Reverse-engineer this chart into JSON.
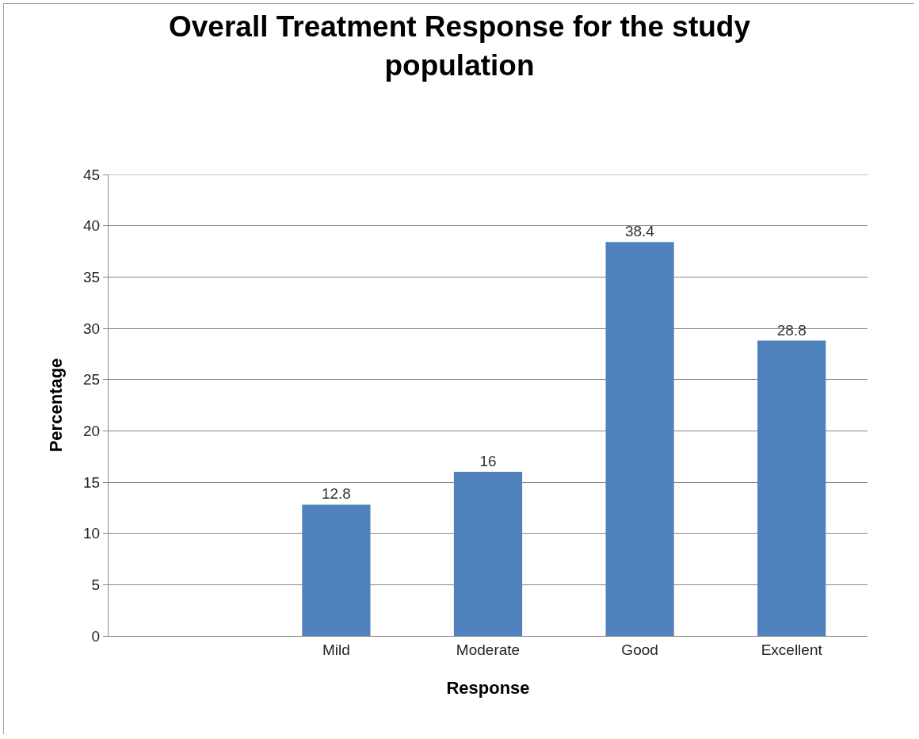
{
  "chart_data": {
    "type": "bar",
    "title": "Overall Treatment Response for the study population",
    "xlabel": "Response",
    "ylabel": "Percentage",
    "categories": [
      null,
      "Mild",
      "Moderate",
      "Good",
      "Excellent"
    ],
    "values": [
      null,
      12.8,
      16,
      38.4,
      28.8
    ],
    "color": "#4f81bd",
    "ylim": [
      0,
      45
    ],
    "yticks": [
      0,
      5,
      10,
      15,
      20,
      25,
      30,
      35,
      40,
      45
    ],
    "grid": "y",
    "data_labels": true
  }
}
